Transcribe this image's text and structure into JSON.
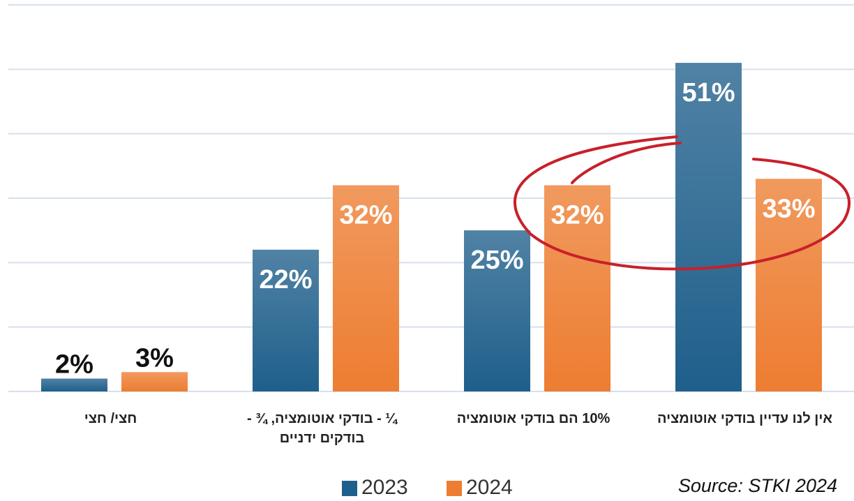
{
  "chart_data": {
    "type": "bar",
    "categories": [
      "חצי/ חצי",
      "¼ - בודקי אוטומציה, ¾ - בודקים ידניים",
      "10% הם בודקי אוטומציה",
      "אין לנו עדיין בודקי אוטומציה"
    ],
    "series": [
      {
        "name": "2023",
        "color": "#1f5f8b",
        "values": [
          2,
          22,
          25,
          51
        ],
        "value_labels": [
          "2%",
          "22%",
          "25%",
          "51%"
        ]
      },
      {
        "name": "2024",
        "color": "#ed7d31",
        "values": [
          3,
          32,
          32,
          33
        ],
        "value_labels": [
          "3%",
          "32%",
          "32%",
          "33%"
        ]
      }
    ],
    "ylim": [
      0,
      60
    ],
    "yticks": [
      0,
      10,
      20,
      30,
      40,
      50,
      60
    ],
    "grid": true,
    "source": "Source: STKI 2024"
  }
}
